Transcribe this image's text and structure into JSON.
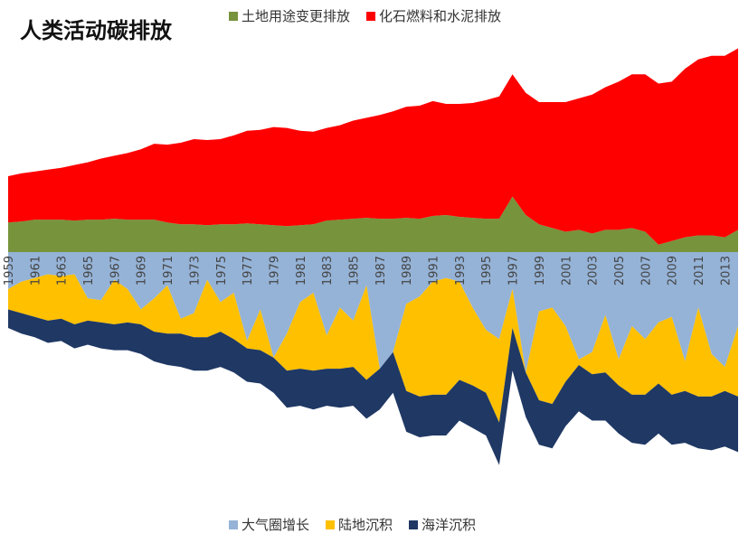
{
  "title": "人类活动碳排放",
  "colors": {
    "land_use": "#77933C",
    "fossil": "#FF0000",
    "atmosphere": "#95B3D7",
    "land_sink": "#FFC000",
    "ocean_sink": "#1F3864"
  },
  "legend_top": [
    {
      "label": "土地用途变更排放",
      "color": "#77933C"
    },
    {
      "label": "化石燃料和水泥排放",
      "color": "#FF0000"
    }
  ],
  "legend_bottom": [
    {
      "label": "大气圈增长",
      "color": "#95B3D7"
    },
    {
      "label": "陆地沉积",
      "color": "#FFC000"
    },
    {
      "label": "海洋沉积",
      "color": "#1F3864"
    }
  ],
  "chart_data": {
    "type": "area",
    "title": "人类活动碳排放",
    "years": [
      1959,
      1960,
      1961,
      1962,
      1963,
      1964,
      1965,
      1966,
      1967,
      1968,
      1969,
      1970,
      1971,
      1972,
      1973,
      1974,
      1975,
      1976,
      1977,
      1978,
      1979,
      1980,
      1981,
      1982,
      1983,
      1984,
      1985,
      1986,
      1987,
      1988,
      1989,
      1990,
      1991,
      1992,
      1993,
      1994,
      1995,
      1996,
      1997,
      1998,
      1999,
      2000,
      2001,
      2002,
      2003,
      2004,
      2005,
      2006,
      2007,
      2008,
      2009,
      2010,
      2011,
      2012,
      2013,
      2014
    ],
    "tick_labels": [
      "1959",
      "1961",
      "1963",
      "1965",
      "1967",
      "1969",
      "1971",
      "1973",
      "1975",
      "1977",
      "1979",
      "1981",
      "1983",
      "1985",
      "1987",
      "1989",
      "1991",
      "1993",
      "1995",
      "1997",
      "1999",
      "2001",
      "2003",
      "2005",
      "2007",
      "2009",
      "2011",
      "2013"
    ],
    "sources": [
      {
        "name": "土地用途变更排放",
        "values": [
          1.6,
          1.65,
          1.75,
          1.75,
          1.75,
          1.7,
          1.75,
          1.75,
          1.8,
          1.75,
          1.75,
          1.75,
          1.6,
          1.5,
          1.5,
          1.45,
          1.5,
          1.5,
          1.55,
          1.5,
          1.45,
          1.4,
          1.45,
          1.5,
          1.7,
          1.75,
          1.8,
          1.85,
          1.8,
          1.8,
          1.85,
          1.8,
          1.95,
          2.0,
          1.9,
          1.85,
          1.8,
          1.8,
          3.0,
          2.0,
          1.5,
          1.3,
          1.1,
          1.2,
          1.0,
          1.2,
          1.2,
          1.3,
          1.1,
          0.4,
          0.6,
          0.8,
          0.9,
          0.9,
          0.8,
          1.2
        ]
      },
      {
        "name": "化石燃料和水泥排放",
        "values": [
          2.5,
          2.6,
          2.6,
          2.7,
          2.8,
          3.0,
          3.1,
          3.3,
          3.4,
          3.6,
          3.8,
          4.1,
          4.2,
          4.4,
          4.6,
          4.6,
          4.6,
          4.8,
          5.0,
          5.1,
          5.3,
          5.3,
          5.1,
          5.0,
          5.0,
          5.1,
          5.3,
          5.4,
          5.6,
          5.8,
          6.0,
          6.1,
          6.2,
          6.0,
          6.1,
          6.2,
          6.4,
          6.6,
          6.6,
          6.6,
          6.6,
          6.8,
          7.0,
          7.1,
          7.5,
          7.7,
          8.0,
          8.3,
          8.5,
          8.7,
          8.6,
          9.1,
          9.5,
          9.7,
          9.8,
          9.8
        ]
      }
    ],
    "sinks": [
      {
        "name": "大气圈增长",
        "values": [
          2.0,
          1.6,
          1.4,
          1.2,
          1.3,
          1.2,
          2.5,
          2.6,
          1.5,
          2.0,
          3.1,
          2.5,
          1.8,
          3.6,
          3.3,
          1.5,
          2.7,
          2.2,
          4.8,
          3.1,
          5.7,
          4.4,
          2.7,
          2.2,
          4.5,
          3.0,
          3.7,
          1.8,
          6.3,
          5.4,
          2.8,
          2.4,
          1.6,
          1.4,
          1.6,
          3.0,
          4.2,
          4.7,
          2.0,
          6.5,
          3.2,
          3.0,
          4.0,
          5.8,
          5.4,
          3.4,
          5.8,
          4.0,
          4.7,
          3.8,
          3.5,
          5.9,
          3.0,
          5.5,
          6.2,
          4.0
        ]
      },
      {
        "name": "陆地沉积",
        "values": [
          1.1,
          1.7,
          2.1,
          2.5,
          2.3,
          2.7,
          1.2,
          1.2,
          2.4,
          1.8,
          0.8,
          1.8,
          2.6,
          0.8,
          1.3,
          3.1,
          1.6,
          2.5,
          0.4,
          2.2,
          0.0,
          2.0,
          3.6,
          4.2,
          1.8,
          3.3,
          2.5,
          5.1,
          0.0,
          0.0,
          4.7,
          5.4,
          6.1,
          6.3,
          5.3,
          4.2,
          3.4,
          4.5,
          2.1,
          0.0,
          4.8,
          5.2,
          3.0,
          0.3,
          1.2,
          3.1,
          1.4,
          3.7,
          3.0,
          3.3,
          4.2,
          1.6,
          4.8,
          2.3,
          1.3,
          3.8
        ]
      },
      {
        "name": "海洋沉积",
        "values": [
          1.0,
          1.1,
          1.1,
          1.2,
          1.2,
          1.3,
          1.3,
          1.4,
          1.4,
          1.5,
          1.6,
          1.6,
          1.7,
          1.8,
          1.8,
          1.8,
          1.9,
          1.8,
          1.8,
          1.8,
          1.9,
          2.0,
          2.0,
          2.1,
          2.0,
          2.1,
          2.1,
          2.1,
          2.2,
          2.2,
          2.2,
          2.2,
          2.2,
          2.2,
          2.2,
          2.3,
          2.3,
          2.3,
          2.3,
          2.4,
          2.4,
          2.4,
          2.4,
          2.5,
          2.5,
          2.6,
          2.6,
          2.6,
          2.7,
          2.7,
          2.7,
          2.8,
          2.8,
          2.9,
          3.0,
          3.0
        ]
      }
    ]
  }
}
